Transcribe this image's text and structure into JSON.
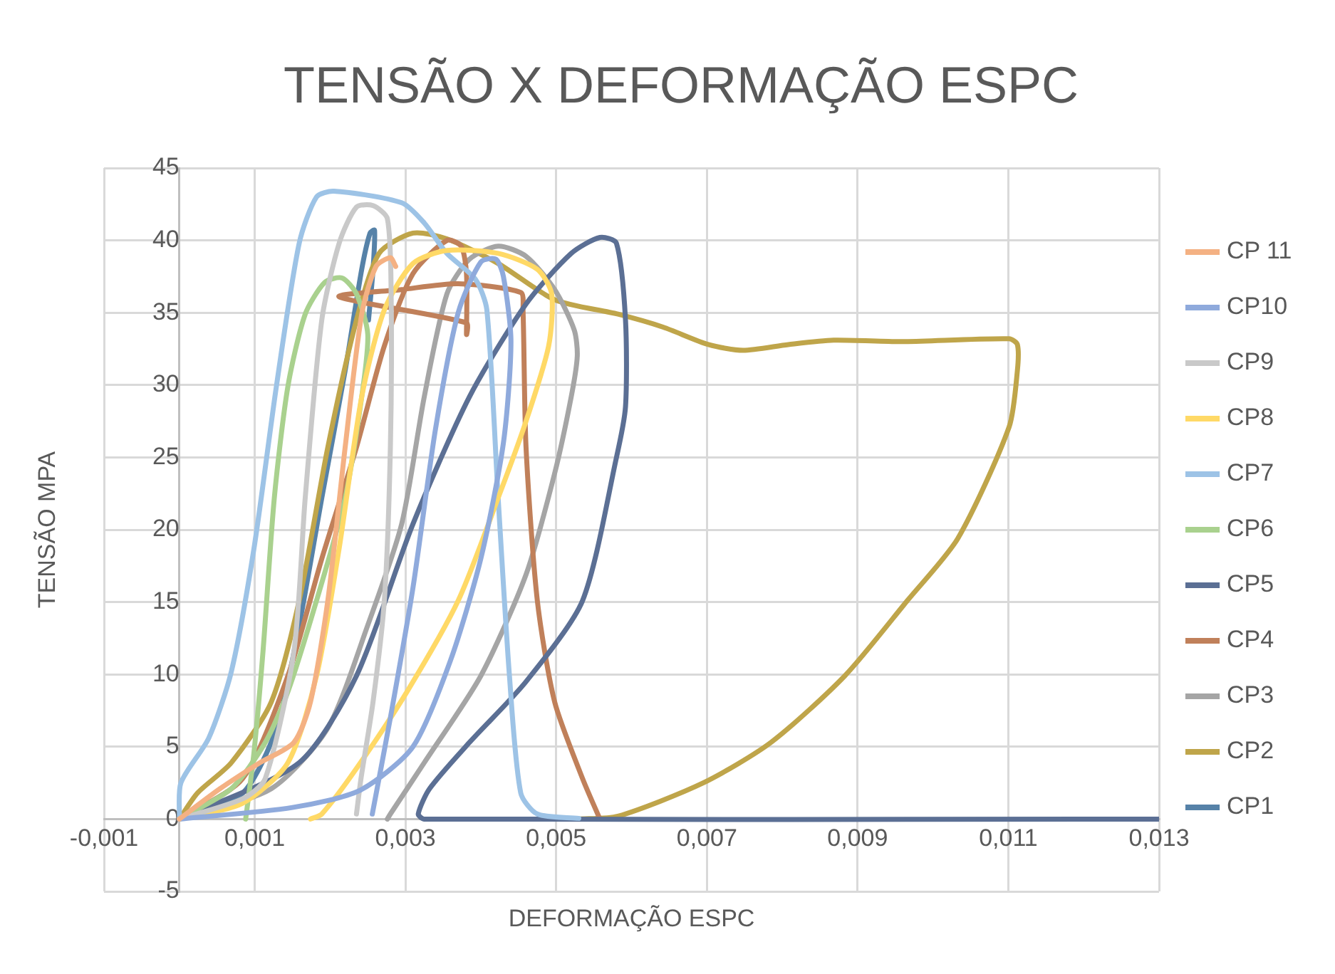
{
  "chart_data": {
    "type": "line",
    "title": "TENSÃO X DEFORMAÇÃO ESPC",
    "xlabel": "DEFORMAÇÃO ESPC",
    "ylabel": "TENSÃO MPA",
    "xlim": [
      -0.001,
      0.013
    ],
    "xticks": [
      {
        "value": -0.001,
        "label": "-0,001"
      },
      {
        "value": 0.001,
        "label": "0,001"
      },
      {
        "value": 0.003,
        "label": "0,003"
      },
      {
        "value": 0.005,
        "label": "0,005"
      },
      {
        "value": 0.007,
        "label": "0,007"
      },
      {
        "value": 0.009,
        "label": "0,009"
      },
      {
        "value": 0.011,
        "label": "0,011"
      },
      {
        "value": 0.013,
        "label": "0,013"
      }
    ],
    "ylim": [
      -5,
      45
    ],
    "yticks": [
      -5,
      0,
      5,
      10,
      15,
      20,
      25,
      30,
      35,
      40,
      45
    ],
    "grid": true,
    "legend": "right",
    "marker": "none",
    "line_style": "solid",
    "series": [
      {
        "name": "CP 11",
        "color": "#f4b183",
        "x": [
          0,
          0.00054,
          0.00107,
          0.00152,
          0.00174,
          0.00197,
          0.0022,
          0.00242,
          0.00261,
          0.0028,
          0.00287
        ],
        "values": [
          0,
          2.1,
          3.9,
          5.3,
          8.1,
          15.1,
          25.7,
          34.9,
          38.2,
          38.8,
          38.2
        ]
      },
      {
        "name": "CP10",
        "color": "#8faadc",
        "x": [
          0.00256,
          0.0028,
          0.0031,
          0.0034,
          0.0037,
          0.004,
          0.0042,
          0.0043,
          0.0044,
          0.0043,
          0.004,
          0.0036,
          0.0031,
          0.0024,
          0.0015,
          0
        ],
        "values": [
          0.35,
          7,
          16,
          27,
          35,
          38.5,
          38.7,
          37.5,
          33,
          26,
          18,
          11,
          5,
          2,
          0.8,
          0
        ]
      },
      {
        "name": "CP9",
        "color": "#c9c9c9",
        "x": [
          0,
          0.00084,
          0.00114,
          0.00152,
          0.00167,
          0.00189,
          0.00212,
          0.00235,
          0.00257,
          0.00276,
          0.00281,
          0.0028,
          0.00272,
          0.00257,
          0.00241,
          0.00235
        ],
        "values": [
          0,
          1.4,
          2.8,
          11.6,
          22.2,
          34.5,
          39.8,
          42.3,
          42.4,
          41.5,
          36.3,
          25.7,
          15.1,
          8.1,
          2.8,
          0.35
        ]
      },
      {
        "name": "CP8",
        "color": "#ffd966",
        "x": [
          0,
          0.00084,
          0.00144,
          0.00182,
          0.00212,
          0.00242,
          0.00272,
          0.0031,
          0.00355,
          0.00423,
          0.00475,
          0.00494,
          0.0049,
          0.0046,
          0.00423,
          0.0037,
          0.00302,
          0.00235,
          0.00189,
          0.00174
        ],
        "values": [
          0,
          1.1,
          3.9,
          9.9,
          18.7,
          29.2,
          35.2,
          38.4,
          39.3,
          39.1,
          38,
          36.3,
          32.7,
          27.5,
          22.2,
          15.1,
          8.8,
          3.5,
          0.35,
          0
        ]
      },
      {
        "name": "CP7",
        "color": "#9dc3e6",
        "x": [
          0,
          2e-05,
          0.00039,
          0.00069,
          0.00099,
          0.00129,
          0.00159,
          0.00182,
          0.00205,
          0.00295,
          0.00325,
          0.00355,
          0.00393,
          0.00408,
          0.00423,
          0.00438,
          0.00453,
          0.00475,
          0.0053
        ],
        "values": [
          0,
          2.5,
          5.6,
          10.2,
          18.7,
          30,
          39.8,
          43,
          43.4,
          42.6,
          41.2,
          39.1,
          37.3,
          35.2,
          22.2,
          9.9,
          1.8,
          0.35,
          0.05
        ]
      },
      {
        "name": "CP6",
        "color": "#a9d18e",
        "x": [
          0,
          0.00069,
          0.00114,
          0.00144,
          0.00182,
          0.0022,
          0.00242,
          0.0025,
          0.00235,
          0.00216,
          0.00193,
          0.00167,
          0.00144,
          0.00126,
          0.00111,
          0.00099,
          0.00088
        ],
        "values": [
          0,
          2.1,
          5.3,
          8.8,
          15.1,
          22.2,
          29.2,
          33.5,
          36.3,
          37.4,
          37.1,
          34.9,
          29.9,
          22.2,
          11.6,
          4.6,
          0
        ]
      },
      {
        "name": "CP5",
        "color": "#5b6f94",
        "x": [
          0,
          0.00159,
          0.00235,
          0.0031,
          0.00385,
          0.0046,
          0.0052,
          0.00558,
          0.0058,
          0.00592,
          0.00592,
          0.0058,
          0.00535,
          0.0046,
          0.00385,
          0.00332,
          0.00317,
          0.00325,
          0.013
        ],
        "values": [
          0,
          3.9,
          9.9,
          20.4,
          29.2,
          35.6,
          39.1,
          40.2,
          39.8,
          34.5,
          28.5,
          25,
          15.1,
          9.5,
          5.3,
          2.1,
          0.35,
          0,
          0
        ]
      },
      {
        "name": "CP4",
        "color": "#c0805a",
        "x": [
          0,
          0.00084,
          0.00144,
          0.00189,
          0.00235,
          0.00272,
          0.0031,
          0.00355,
          0.00374,
          0.00381,
          0.00381,
          0.00381,
          0.00212,
          0.00295,
          0.0037,
          0.00453,
          0.00456,
          0.0046,
          0.00475,
          0.00498,
          0.00535,
          0.00558
        ],
        "values": [
          0,
          2.8,
          9.9,
          18,
          25.7,
          32.7,
          37.7,
          40,
          39.6,
          37.7,
          33.5,
          34.3,
          36.1,
          36.6,
          37,
          36.4,
          35.2,
          25.7,
          15.1,
          8.1,
          2.8,
          0
        ]
      },
      {
        "name": "CP3",
        "color": "#a5a5a5",
        "x": [
          0,
          0.00122,
          0.00197,
          0.0025,
          0.00295,
          0.00325,
          0.00355,
          0.00385,
          0.00423,
          0.0046,
          0.00498,
          0.00524,
          0.00528,
          0.0052,
          0.00498,
          0.0046,
          0.004,
          0.00325,
          0.0028,
          0.00276
        ],
        "values": [
          0,
          2.1,
          6.3,
          13.4,
          20.4,
          29.2,
          36.3,
          38.7,
          39.6,
          38.9,
          36.6,
          33.8,
          32,
          29.2,
          23.9,
          16.9,
          9.9,
          3.9,
          0.35,
          0
        ]
      },
      {
        "name": "CP2",
        "color": "#bfa54a",
        "x": [
          0,
          0.00024,
          0.00069,
          0.00122,
          0.00159,
          0.00197,
          0.00235,
          0.00265,
          0.0031,
          0.00355,
          0.00423,
          0.00498,
          0.00582,
          0.00642,
          0.00702,
          0.00748,
          0.00808,
          0.00868,
          0.00958,
          0.01101,
          0.01112,
          0.01112,
          0.01101,
          0.01033,
          0.00966,
          0.00883,
          0.00785,
          0.00695,
          0.00582,
          0.00528
        ],
        "values": [
          0,
          1.8,
          3.9,
          8.1,
          15.1,
          25.7,
          34.5,
          39.1,
          40.5,
          40.1,
          38.4,
          35.9,
          34.9,
          34,
          32.8,
          32.4,
          32.8,
          33.1,
          33,
          33.2,
          32.8,
          31,
          27.1,
          19.4,
          15.1,
          9.9,
          5.3,
          2.5,
          0.2,
          0
        ]
      },
      {
        "name": "CP1",
        "color": "#5682a8",
        "x": [
          0,
          0.00084,
          0.00129,
          0.00159,
          0.00189,
          0.0022,
          0.00242,
          0.00253,
          0.00259,
          0.00257,
          0.00251
        ],
        "values": [
          0,
          1.8,
          6.3,
          13.4,
          22.2,
          31,
          38,
          40.5,
          40.7,
          38,
          34.5
        ]
      }
    ]
  }
}
